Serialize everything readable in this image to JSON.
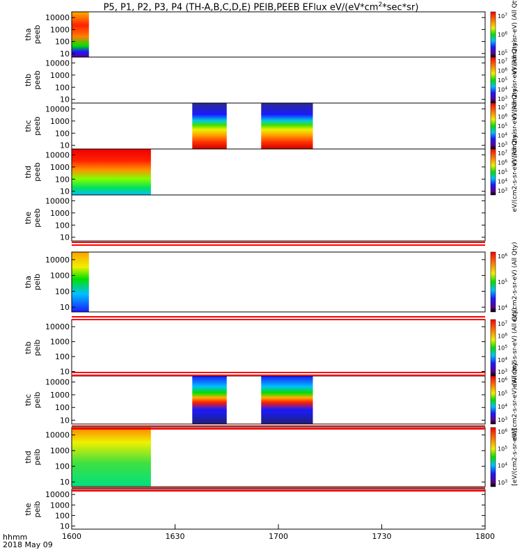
{
  "title": "P5, P1, P2, P3, P4 (TH-A,B,C,D,E) PEIB,PEEB EFlux eV/(eV*cm",
  "title_sup": "2",
  "title_tail": "*sec*sr)",
  "x_axis": {
    "label_line1": "hhmm",
    "label_line2": "2018 May 09",
    "ticks": [
      "1600",
      "1630",
      "1700",
      "1730",
      "1800"
    ]
  },
  "chart_data": [
    {
      "type": "heatmap",
      "panel": "tha peeb",
      "ylabel": [
        "tha",
        "peeb"
      ],
      "yscale": "log",
      "ylim": [
        5,
        30000
      ],
      "yticks": [
        "10",
        "100",
        "1000",
        "10000"
      ],
      "data_ranges": [
        [
          "16:00",
          "16:05"
        ]
      ],
      "colorbar_ticks": [
        "10^5",
        "10^6",
        "10^7"
      ]
    },
    {
      "type": "heatmap",
      "panel": "thb peeb",
      "ylabel": [
        "thb",
        "peeb"
      ],
      "yscale": "log",
      "ylim": [
        5,
        30000
      ],
      "yticks": [
        "10",
        "100",
        "1000",
        "10000"
      ],
      "data_ranges": [],
      "colorbar_ticks": [
        "10^3",
        "10^4",
        "10^5",
        "10^6",
        "10^7"
      ]
    },
    {
      "type": "heatmap",
      "panel": "thc peeb",
      "ylabel": [
        "thc",
        "peeb"
      ],
      "yscale": "log",
      "ylim": [
        5,
        30000
      ],
      "yticks": [
        "10",
        "100",
        "1000",
        "10000"
      ],
      "data_ranges": [
        [
          "16:35",
          "16:45"
        ],
        [
          "16:55",
          "17:10"
        ]
      ],
      "colorbar_ticks": [
        "10^3",
        "10^4",
        "10^5",
        "10^6",
        "10^7"
      ]
    },
    {
      "type": "heatmap",
      "panel": "thd peeb",
      "ylabel": [
        "thd",
        "peeb"
      ],
      "yscale": "log",
      "ylim": [
        5,
        30000
      ],
      "yticks": [
        "10",
        "100",
        "1000",
        "10000"
      ],
      "data_ranges": [
        [
          "16:00",
          "16:23"
        ]
      ],
      "colorbar_ticks": [
        "10^3",
        "10^4",
        "10^5",
        "10^6",
        "10^7"
      ]
    },
    {
      "type": "heatmap",
      "panel": "the peeb",
      "ylabel": [
        "the",
        "peeb"
      ],
      "yscale": "log",
      "ylim": [
        5,
        30000
      ],
      "yticks": [
        "10",
        "100",
        "1000",
        "10000"
      ],
      "data_ranges": [],
      "colorbar_ticks": []
    },
    {
      "type": "heatmap",
      "panel": "tha peib",
      "ylabel": [
        "tha",
        "peib"
      ],
      "yscale": "log",
      "ylim": [
        5,
        30000
      ],
      "yticks": [
        "10",
        "100",
        "1000",
        "10000"
      ],
      "data_ranges": [
        [
          "16:00",
          "16:05"
        ]
      ],
      "colorbar_ticks": [
        "10^4",
        "10^5",
        "10^6"
      ]
    },
    {
      "type": "heatmap",
      "panel": "thb peib",
      "ylabel": [
        "thb",
        "peib"
      ],
      "yscale": "log",
      "ylim": [
        5,
        30000
      ],
      "yticks": [
        "10",
        "100",
        "1000",
        "10000"
      ],
      "data_ranges": [],
      "colorbar_ticks": [
        "10^3",
        "10^4",
        "10^5",
        "10^6",
        "10^7"
      ]
    },
    {
      "type": "heatmap",
      "panel": "thc peib",
      "ylabel": [
        "thc",
        "peib"
      ],
      "yscale": "log",
      "ylim": [
        5,
        30000
      ],
      "yticks": [
        "10",
        "100",
        "1000",
        "10000"
      ],
      "data_ranges": [
        [
          "16:35",
          "16:45"
        ],
        [
          "16:55",
          "17:10"
        ]
      ],
      "colorbar_ticks": [
        "10^3",
        "10^4",
        "10^5",
        "10^6"
      ]
    },
    {
      "type": "heatmap",
      "panel": "thd peib",
      "ylabel": [
        "thd",
        "peib"
      ],
      "yscale": "log",
      "ylim": [
        5,
        30000
      ],
      "yticks": [
        "10",
        "100",
        "1000",
        "10000"
      ],
      "data_ranges": [
        [
          "16:00",
          "16:23"
        ]
      ],
      "colorbar_ticks": [
        "10^3",
        "10^4",
        "10^5",
        "10^6"
      ]
    },
    {
      "type": "heatmap",
      "panel": "the peib",
      "ylabel": [
        "the",
        "peib"
      ],
      "yscale": "log",
      "ylim": [
        5,
        30000
      ],
      "yticks": [
        "10",
        "100",
        "1000",
        "10000"
      ],
      "data_ranges": [],
      "colorbar_ticks": []
    }
  ],
  "colorbar_labels": [
    "eV/(cm2-s-sr-eV) (All Qty)",
    "eV/(cm2-s-sr-eV) (All Qty)",
    "eV/(cm2-s-sr-eV) (All Qty)",
    "eV/(cm2-s-sr-eV) (All Qty)",
    "eV/(cm2-s-sr-eV) (All Qty)",
    "eV/(cm2-s-sr-eV) (All Qty)",
    "eV/(cm2-s-sr-eV) (All Qty)",
    "[eV/(cm2-s-sr-eV)]"
  ]
}
